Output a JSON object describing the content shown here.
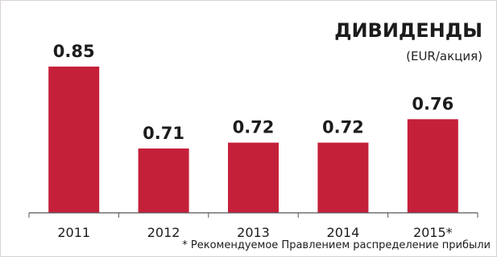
{
  "chart_data": {
    "type": "bar",
    "title": "ДИВИДЕНДЫ",
    "subtitle": "(EUR/акция)",
    "categories": [
      "2011",
      "2012",
      "2013",
      "2014",
      "2015*"
    ],
    "values": [
      0.85,
      0.71,
      0.72,
      0.72,
      0.76
    ],
    "value_labels": [
      "0.85",
      "0.71",
      "0.72",
      "0.72",
      "0.76"
    ],
    "footnote": "* Рекомендуемое Правлением распределение прибыли",
    "xlabel": "",
    "ylabel": "",
    "ylim": [
      0.6,
      0.88
    ],
    "grid": false,
    "legend": "none",
    "bar_color": "#c5203a",
    "axis_color": "#555555"
  }
}
